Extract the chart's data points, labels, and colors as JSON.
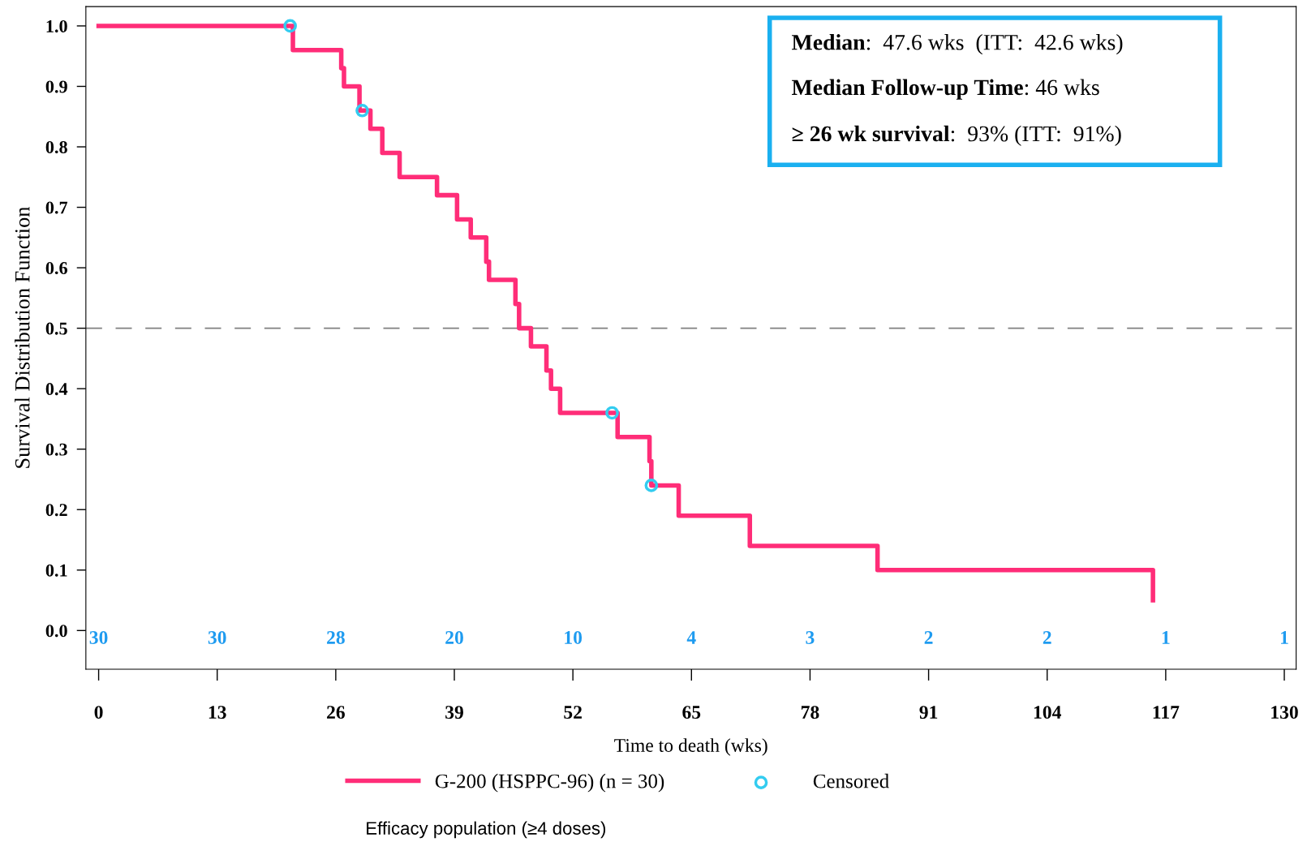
{
  "chart_data": {
    "type": "step",
    "xlabel": "Time to death (wks)",
    "ylabel": "Survival Distribution Function",
    "xlim": [
      -1.4,
      131.3
    ],
    "ylim": [
      -0.064,
      1.032
    ],
    "xticks": [
      0,
      13,
      26,
      39,
      52,
      65,
      78,
      91,
      104,
      117,
      130
    ],
    "yticks": [
      {
        "value": 0,
        "label": "0.0"
      },
      0.1,
      0.2,
      0.3,
      0.4,
      0.5,
      0.6,
      0.7,
      0.8,
      0.9,
      {
        "value": 1,
        "label": "1.0"
      }
    ],
    "grid": false,
    "legend": "bottom",
    "series": [
      {
        "name": "G-200 (HSPPC-96) (n = 30)",
        "color": "#ff2d78",
        "marker": "none",
        "x": [
          0,
          21.3,
          26.6,
          26.9,
          28.6,
          29.8,
          31.1,
          33.0,
          37.1,
          39.3,
          40.8,
          42.5,
          42.8,
          45.7,
          46.1,
          47.4,
          49.1,
          49.6,
          50.6,
          56.9,
          60.4,
          60.6,
          63.6,
          71.4,
          85.4,
          115.6
        ],
        "values": [
          1.0,
          0.96,
          0.93,
          0.9,
          0.86,
          0.83,
          0.79,
          0.75,
          0.72,
          0.68,
          0.65,
          0.61,
          0.58,
          0.54,
          0.5,
          0.47,
          0.43,
          0.4,
          0.36,
          0.32,
          0.28,
          0.24,
          0.19,
          0.14,
          0.1,
          0.05
        ]
      },
      {
        "name": "Censored",
        "type": "scatter",
        "color": "#33ccf0",
        "marker": "circle",
        "x": [
          21.0,
          28.9,
          56.3,
          60.6
        ],
        "values": [
          1.0,
          0.86,
          0.36,
          0.24
        ]
      }
    ],
    "ref_lines": [
      {
        "axis": "y",
        "value": 0.5,
        "color": "#808080",
        "line_style": "dashed"
      }
    ],
    "annotations": [
      "Median:  47.6 wks  (ITT:  42.6 wks)",
      "Median Follow-up Time: 46 wks",
      "≥ 26 wk survival:  93% (ITT:  91%)",
      "Efficacy population (≥4 doses)",
      "30",
      "30",
      "28",
      "20",
      "10",
      "4",
      "3",
      "2",
      "2",
      "1",
      "1"
    ]
  }
}
